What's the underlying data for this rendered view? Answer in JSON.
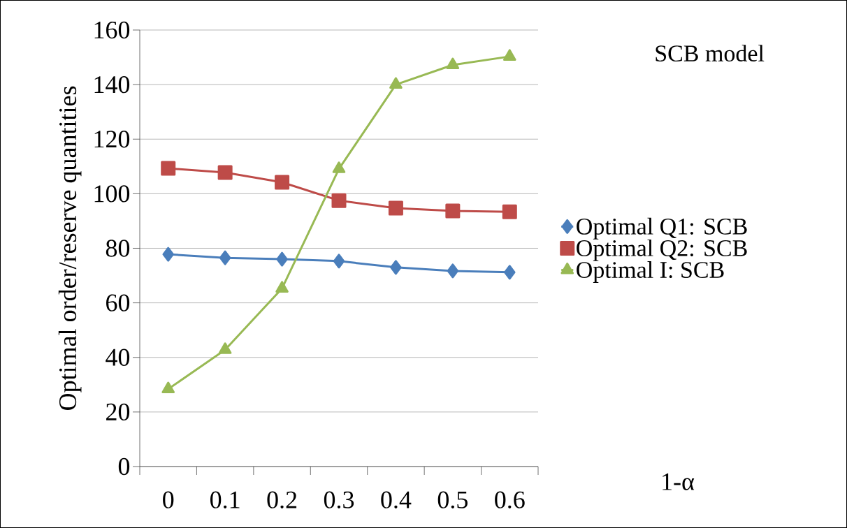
{
  "chart_data": {
    "type": "line",
    "title": "SCB model",
    "xlabel": "1-α",
    "ylabel": "Optimal order/reserve quantities",
    "categories": [
      "0",
      "0.1",
      "0.2",
      "0.3",
      "0.4",
      "0.5",
      "0.6"
    ],
    "series": [
      {
        "name": "Optimal Q1: SCB",
        "color": "#4a7ebb",
        "marker": "diamond",
        "values": [
          77.8,
          76.5,
          76.0,
          75.3,
          73.0,
          71.7,
          71.2
        ]
      },
      {
        "name": "Optimal Q2: SCB",
        "color": "#be4b48",
        "marker": "square",
        "values": [
          109.3,
          107.8,
          104.2,
          97.5,
          94.7,
          93.7,
          93.4
        ]
      },
      {
        "name": "Optimal I: SCB",
        "color": "#98b954",
        "marker": "triangle",
        "values": [
          28.4,
          42.8,
          65.3,
          109.1,
          140.0,
          147.2,
          150.3
        ]
      }
    ],
    "ylim": [
      0,
      160
    ],
    "yticks": [
      0,
      20,
      40,
      60,
      80,
      100,
      120,
      140,
      160
    ],
    "grid": "y",
    "legend": "right",
    "line_style": "solid"
  }
}
